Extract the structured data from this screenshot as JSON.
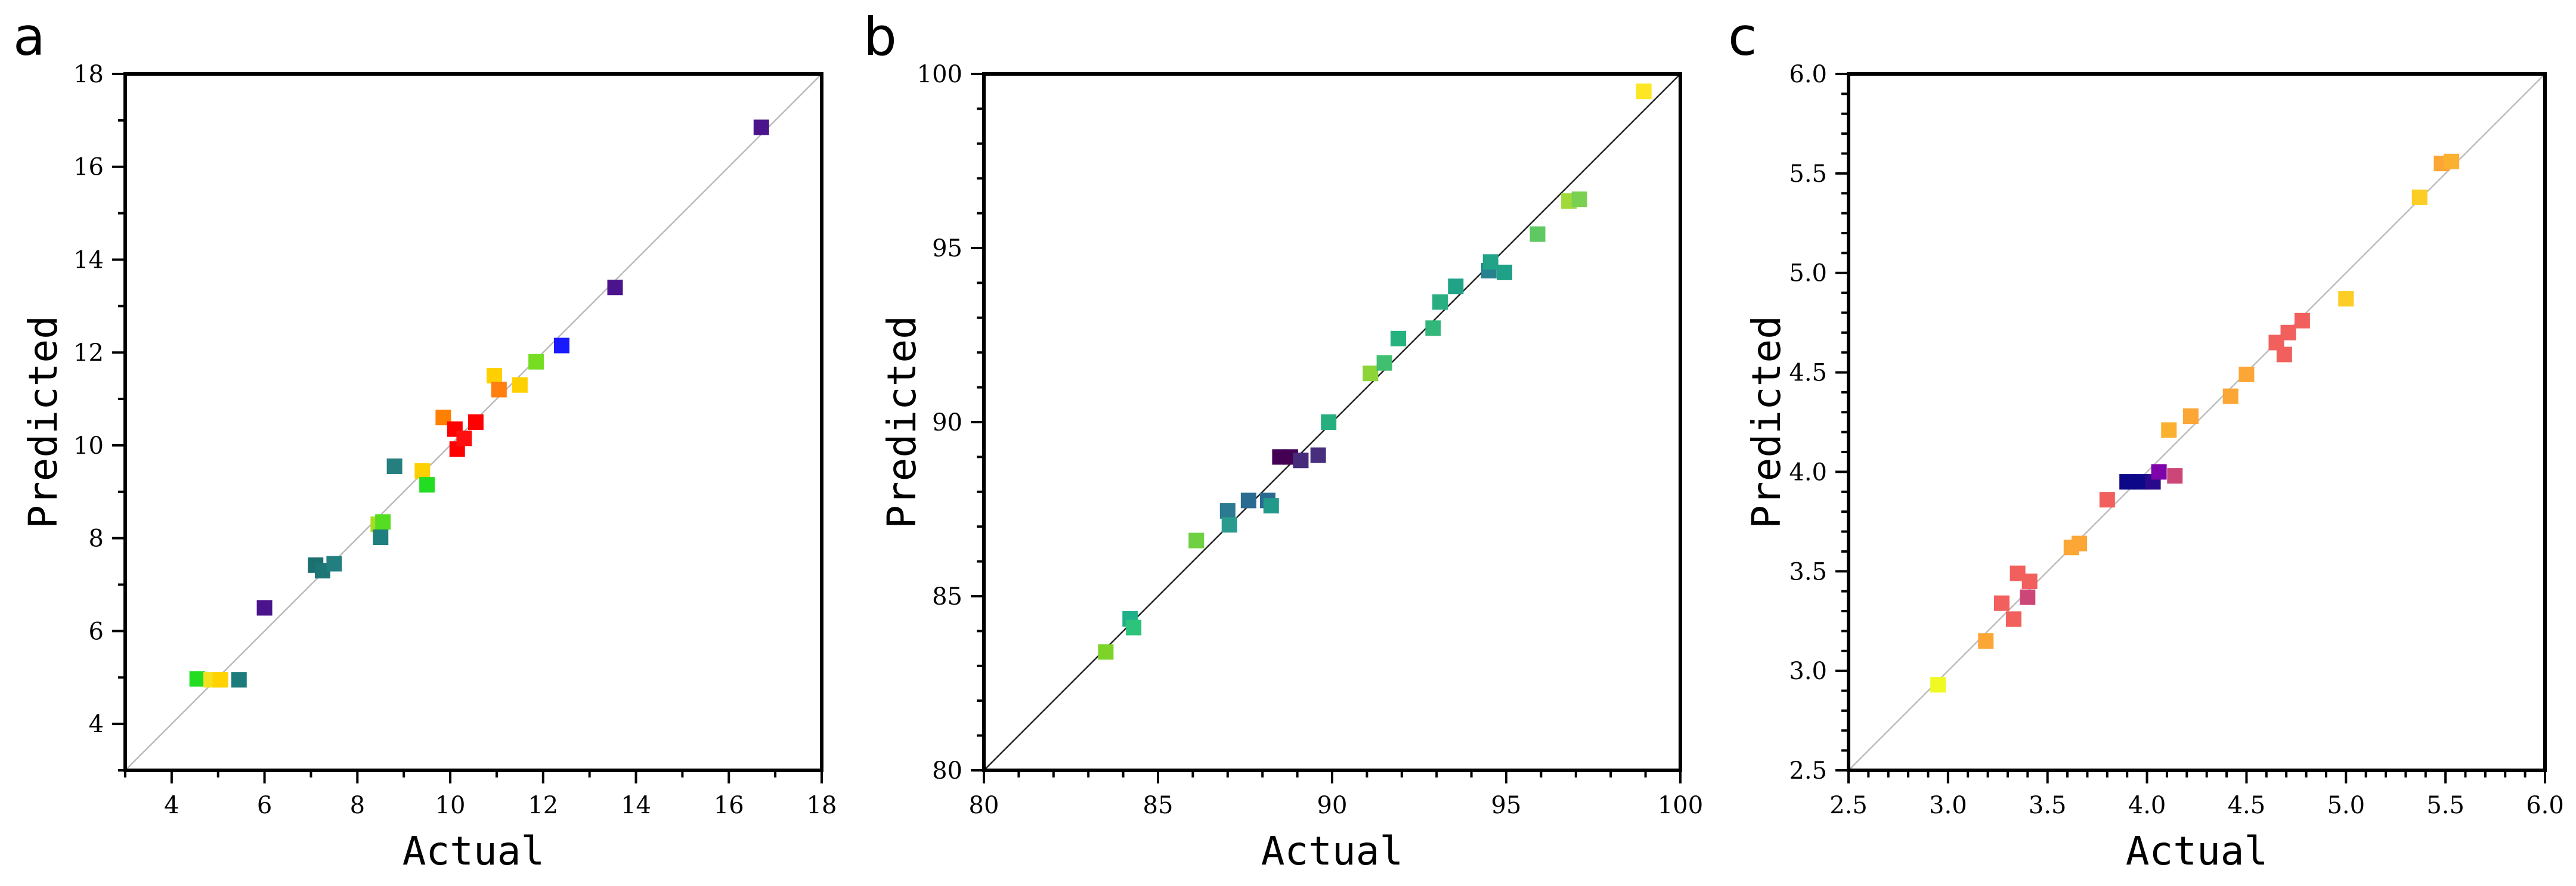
{
  "chart_data": [
    {
      "panel": "a",
      "type": "scatter",
      "xlabel": "Actual",
      "ylabel": "Predicted",
      "xlim": [
        3,
        18
      ],
      "ylim": [
        3,
        18
      ],
      "xticks": [
        4,
        6,
        8,
        10,
        12,
        14,
        16,
        18
      ],
      "yticks": [
        4,
        6,
        8,
        10,
        12,
        14,
        16,
        18
      ],
      "minor_step": 1,
      "tick_decimals": 0,
      "reference_line": "y = x",
      "ref_color": "#bbbbbb",
      "points": [
        {
          "x": 4.55,
          "y": 4.97,
          "color": "#22dd22"
        },
        {
          "x": 4.85,
          "y": 4.95,
          "color": "#f5e020"
        },
        {
          "x": 5.05,
          "y": 4.95,
          "color": "#ffd200"
        },
        {
          "x": 5.45,
          "y": 4.95,
          "color": "#1d7b7b"
        },
        {
          "x": 6.0,
          "y": 6.5,
          "color": "#4b148c"
        },
        {
          "x": 7.1,
          "y": 7.42,
          "color": "#1b6f6f"
        },
        {
          "x": 7.25,
          "y": 7.3,
          "color": "#1e7575"
        },
        {
          "x": 7.5,
          "y": 7.45,
          "color": "#237f7f"
        },
        {
          "x": 8.45,
          "y": 8.3,
          "color": "#aadd22"
        },
        {
          "x": 8.55,
          "y": 8.35,
          "color": "#55dd22"
        },
        {
          "x": 8.5,
          "y": 8.02,
          "color": "#1f7e7e"
        },
        {
          "x": 8.8,
          "y": 9.55,
          "color": "#257f7f"
        },
        {
          "x": 9.4,
          "y": 9.45,
          "color": "#ffd000"
        },
        {
          "x": 9.5,
          "y": 9.15,
          "color": "#22dd22"
        },
        {
          "x": 9.85,
          "y": 10.6,
          "color": "#ff7f00"
        },
        {
          "x": 10.1,
          "y": 10.35,
          "color": "#ff0000"
        },
        {
          "x": 10.15,
          "y": 9.92,
          "color": "#ff0000"
        },
        {
          "x": 10.3,
          "y": 10.15,
          "color": "#ff1010"
        },
        {
          "x": 10.55,
          "y": 10.5,
          "color": "#ff0000"
        },
        {
          "x": 10.95,
          "y": 11.5,
          "color": "#ffd000"
        },
        {
          "x": 11.05,
          "y": 11.2,
          "color": "#ff7f10"
        },
        {
          "x": 11.5,
          "y": 11.3,
          "color": "#ffd000"
        },
        {
          "x": 11.85,
          "y": 11.8,
          "color": "#77dd22"
        },
        {
          "x": 12.4,
          "y": 12.15,
          "color": "#1a1aff"
        },
        {
          "x": 13.55,
          "y": 13.4,
          "color": "#4b148c"
        },
        {
          "x": 16.7,
          "y": 16.85,
          "color": "#4b148c"
        }
      ]
    },
    {
      "panel": "b",
      "type": "scatter",
      "xlabel": "Actual",
      "ylabel": "Predicted",
      "xlim": [
        80,
        100
      ],
      "ylim": [
        80,
        100
      ],
      "xticks": [
        80,
        85,
        90,
        95,
        100
      ],
      "yticks": [
        80,
        85,
        90,
        95,
        100
      ],
      "minor_step": 1,
      "tick_decimals": 0,
      "reference_line": "y = x",
      "ref_color": "#222222",
      "points": [
        {
          "x": 83.5,
          "y": 83.4,
          "color": "#7dd32a"
        },
        {
          "x": 84.2,
          "y": 84.35,
          "color": "#20b18a"
        },
        {
          "x": 84.3,
          "y": 84.1,
          "color": "#2cc37a"
        },
        {
          "x": 86.1,
          "y": 86.6,
          "color": "#6fd044"
        },
        {
          "x": 87.0,
          "y": 87.45,
          "color": "#2b7a91"
        },
        {
          "x": 87.05,
          "y": 87.05,
          "color": "#2a9b8e"
        },
        {
          "x": 87.6,
          "y": 87.75,
          "color": "#2a6b92"
        },
        {
          "x": 88.15,
          "y": 87.75,
          "color": "#2a6b92"
        },
        {
          "x": 88.25,
          "y": 87.6,
          "color": "#229a8a"
        },
        {
          "x": 88.5,
          "y": 89.0,
          "color": "#440154"
        },
        {
          "x": 88.8,
          "y": 89.0,
          "color": "#440154"
        },
        {
          "x": 89.1,
          "y": 88.9,
          "color": "#472b7b"
        },
        {
          "x": 89.6,
          "y": 89.05,
          "color": "#472f7d"
        },
        {
          "x": 89.9,
          "y": 90.0,
          "color": "#27b07f"
        },
        {
          "x": 91.1,
          "y": 91.4,
          "color": "#8cd438"
        },
        {
          "x": 91.5,
          "y": 91.7,
          "color": "#3fbf6f"
        },
        {
          "x": 91.9,
          "y": 92.4,
          "color": "#25b27f"
        },
        {
          "x": 92.9,
          "y": 92.7,
          "color": "#32b67a"
        },
        {
          "x": 93.1,
          "y": 93.45,
          "color": "#28ae80"
        },
        {
          "x": 93.55,
          "y": 93.9,
          "color": "#20a386"
        },
        {
          "x": 94.5,
          "y": 94.35,
          "color": "#26828e"
        },
        {
          "x": 94.55,
          "y": 94.6,
          "color": "#20a386"
        },
        {
          "x": 94.95,
          "y": 94.3,
          "color": "#1fa188"
        },
        {
          "x": 95.9,
          "y": 95.4,
          "color": "#5ec962"
        },
        {
          "x": 96.8,
          "y": 96.35,
          "color": "#a0da39"
        },
        {
          "x": 97.1,
          "y": 96.4,
          "color": "#7ad151"
        },
        {
          "x": 98.95,
          "y": 99.5,
          "color": "#fde725"
        }
      ]
    },
    {
      "panel": "c",
      "type": "scatter",
      "xlabel": "Actual",
      "ylabel": "Predicted",
      "xlim": [
        2.5,
        6.0
      ],
      "ylim": [
        2.5,
        6.0
      ],
      "xticks": [
        2.5,
        3.0,
        3.5,
        4.0,
        4.5,
        5.0,
        5.5,
        6.0
      ],
      "yticks": [
        2.5,
        3.0,
        3.5,
        4.0,
        4.5,
        5.0,
        5.5,
        6.0
      ],
      "minor_step": 0.1,
      "tick_decimals": 1,
      "reference_line": "y = x",
      "ref_color": "#bbbbbb",
      "points": [
        {
          "x": 2.95,
          "y": 2.93,
          "color": "#f0f921"
        },
        {
          "x": 3.19,
          "y": 3.15,
          "color": "#fca636"
        },
        {
          "x": 3.27,
          "y": 3.34,
          "color": "#f1605d"
        },
        {
          "x": 3.33,
          "y": 3.26,
          "color": "#f1605d"
        },
        {
          "x": 3.35,
          "y": 3.49,
          "color": "#f1605d"
        },
        {
          "x": 3.4,
          "y": 3.37,
          "color": "#cc4778"
        },
        {
          "x": 3.41,
          "y": 3.45,
          "color": "#f1605d"
        },
        {
          "x": 3.62,
          "y": 3.62,
          "color": "#fca636"
        },
        {
          "x": 3.66,
          "y": 3.64,
          "color": "#fca636"
        },
        {
          "x": 3.8,
          "y": 3.86,
          "color": "#f1605d"
        },
        {
          "x": 3.9,
          "y": 3.95,
          "color": "#0d0887"
        },
        {
          "x": 3.97,
          "y": 3.95,
          "color": "#0d0887"
        },
        {
          "x": 4.03,
          "y": 3.95,
          "color": "#2a0a8a"
        },
        {
          "x": 4.06,
          "y": 4.0,
          "color": "#7e03a8"
        },
        {
          "x": 4.11,
          "y": 4.21,
          "color": "#fcb030"
        },
        {
          "x": 4.14,
          "y": 3.98,
          "color": "#cc4778"
        },
        {
          "x": 4.22,
          "y": 4.28,
          "color": "#fca636"
        },
        {
          "x": 4.42,
          "y": 4.38,
          "color": "#fca636"
        },
        {
          "x": 4.5,
          "y": 4.49,
          "color": "#fca636"
        },
        {
          "x": 4.65,
          "y": 4.65,
          "color": "#f1605d"
        },
        {
          "x": 4.69,
          "y": 4.59,
          "color": "#f1605d"
        },
        {
          "x": 4.71,
          "y": 4.7,
          "color": "#f1605d"
        },
        {
          "x": 4.78,
          "y": 4.76,
          "color": "#f1605d"
        },
        {
          "x": 5.0,
          "y": 4.87,
          "color": "#fcce25"
        },
        {
          "x": 5.37,
          "y": 5.38,
          "color": "#fcce25"
        },
        {
          "x": 5.48,
          "y": 5.55,
          "color": "#fca636"
        },
        {
          "x": 5.53,
          "y": 5.56,
          "color": "#fcb030"
        }
      ]
    }
  ]
}
